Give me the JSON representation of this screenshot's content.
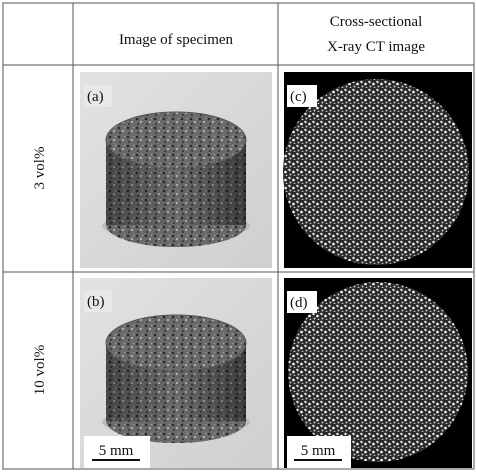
{
  "table": {
    "header": {
      "specimen": "Image of specimen",
      "ct": [
        "Cross-sectional",
        "X-ray CT image"
      ]
    },
    "rows": [
      {
        "label": "3 vol%",
        "specimen_label": "(a)",
        "ct_label": "(c)"
      },
      {
        "label": "10 vol%",
        "specimen_label": "(b)",
        "ct_label": "(d)",
        "specimen_scale": "5 mm",
        "ct_scale": "5 mm"
      }
    ]
  }
}
